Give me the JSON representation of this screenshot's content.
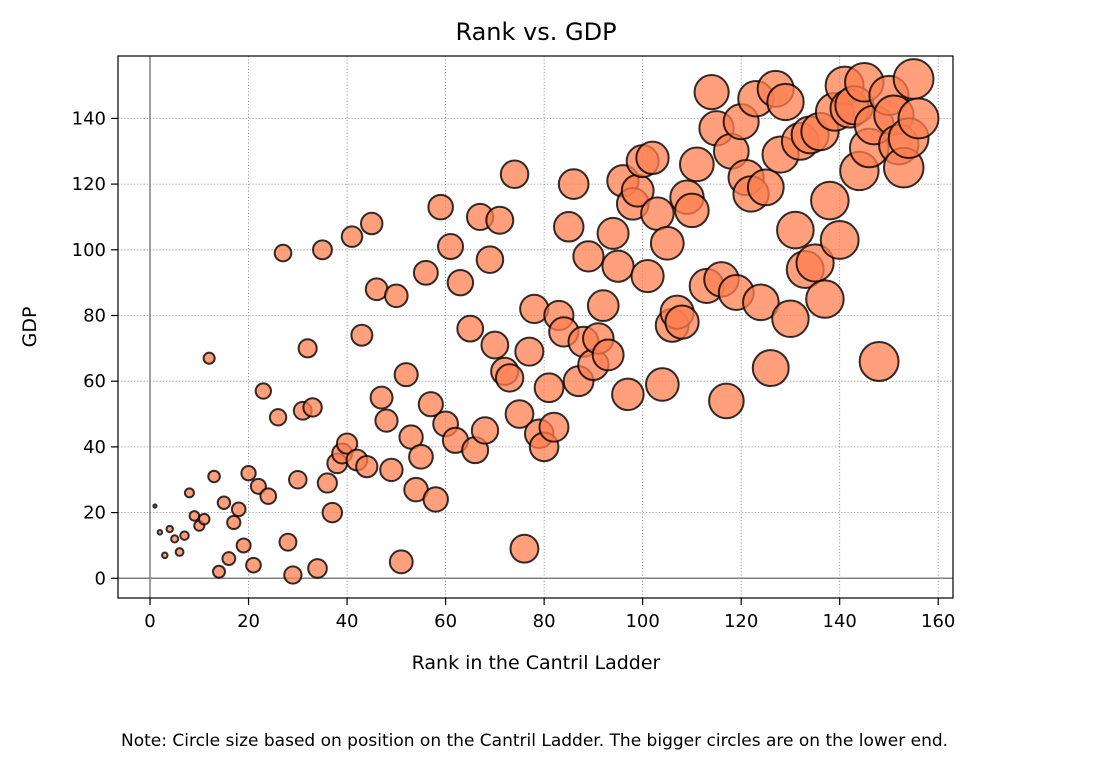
{
  "chart_data": {
    "type": "scatter",
    "title": "Rank vs. GDP",
    "xlabel": "Rank in the Cantril Ladder",
    "ylabel": "GDP",
    "xlim": [
      -6.5,
      163
    ],
    "ylim": [
      -6,
      159
    ],
    "xticks": [
      0,
      20,
      40,
      60,
      80,
      100,
      120,
      140,
      160
    ],
    "yticks": [
      0,
      20,
      40,
      60,
      80,
      100,
      120,
      140
    ],
    "grid": true,
    "marker_color": "#ff7f50",
    "marker_edge_color": "#000000",
    "size_encoding": "marker size proportional to rank",
    "points": [
      [
        1,
        22
      ],
      [
        2,
        14
      ],
      [
        3,
        7
      ],
      [
        4,
        15
      ],
      [
        5,
        12
      ],
      [
        6,
        8
      ],
      [
        7,
        13
      ],
      [
        8,
        26
      ],
      [
        9,
        19
      ],
      [
        10,
        16
      ],
      [
        11,
        18
      ],
      [
        12,
        67
      ],
      [
        13,
        31
      ],
      [
        14,
        2
      ],
      [
        15,
        23
      ],
      [
        16,
        6
      ],
      [
        17,
        17
      ],
      [
        18,
        21
      ],
      [
        19,
        10
      ],
      [
        20,
        32
      ],
      [
        21,
        4
      ],
      [
        22,
        28
      ],
      [
        23,
        57
      ],
      [
        24,
        25
      ],
      [
        26,
        49
      ],
      [
        27,
        99
      ],
      [
        28,
        11
      ],
      [
        29,
        1
      ],
      [
        30,
        30
      ],
      [
        31,
        51
      ],
      [
        32,
        70
      ],
      [
        33,
        52
      ],
      [
        34,
        3
      ],
      [
        35,
        100
      ],
      [
        36,
        29
      ],
      [
        37,
        20
      ],
      [
        38,
        35
      ],
      [
        39,
        38
      ],
      [
        40,
        41
      ],
      [
        41,
        104
      ],
      [
        42,
        36
      ],
      [
        43,
        74
      ],
      [
        44,
        34
      ],
      [
        45,
        108
      ],
      [
        46,
        88
      ],
      [
        47,
        55
      ],
      [
        48,
        48
      ],
      [
        49,
        33
      ],
      [
        50,
        86
      ],
      [
        51,
        5
      ],
      [
        52,
        62
      ],
      [
        53,
        43
      ],
      [
        54,
        27
      ],
      [
        55,
        37
      ],
      [
        56,
        93
      ],
      [
        57,
        53
      ],
      [
        58,
        24
      ],
      [
        59,
        113
      ],
      [
        60,
        47
      ],
      [
        61,
        101
      ],
      [
        62,
        42
      ],
      [
        63,
        90
      ],
      [
        65,
        76
      ],
      [
        66,
        39
      ],
      [
        67,
        110
      ],
      [
        68,
        45
      ],
      [
        69,
        97
      ],
      [
        70,
        71
      ],
      [
        71,
        109
      ],
      [
        72,
        63
      ],
      [
        73,
        61
      ],
      [
        74,
        123
      ],
      [
        75,
        50
      ],
      [
        76,
        9
      ],
      [
        77,
        69
      ],
      [
        78,
        82
      ],
      [
        79,
        44
      ],
      [
        80,
        40
      ],
      [
        81,
        58
      ],
      [
        82,
        46
      ],
      [
        83,
        80
      ],
      [
        84,
        75
      ],
      [
        85,
        107
      ],
      [
        86,
        120
      ],
      [
        87,
        60
      ],
      [
        88,
        72
      ],
      [
        89,
        98
      ],
      [
        90,
        65
      ],
      [
        91,
        73
      ],
      [
        92,
        83
      ],
      [
        93,
        68
      ],
      [
        94,
        105
      ],
      [
        95,
        95
      ],
      [
        96,
        121
      ],
      [
        97,
        56
      ],
      [
        98,
        114
      ],
      [
        99,
        118
      ],
      [
        100,
        127
      ],
      [
        101,
        92
      ],
      [
        102,
        128
      ],
      [
        103,
        111
      ],
      [
        104,
        59
      ],
      [
        105,
        102
      ],
      [
        106,
        77
      ],
      [
        107,
        81
      ],
      [
        108,
        78
      ],
      [
        109,
        116
      ],
      [
        110,
        112
      ],
      [
        111,
        126
      ],
      [
        113,
        89
      ],
      [
        114,
        148
      ],
      [
        115,
        137
      ],
      [
        116,
        91
      ],
      [
        117,
        54
      ],
      [
        118,
        130
      ],
      [
        119,
        87
      ],
      [
        120,
        139
      ],
      [
        121,
        122
      ],
      [
        122,
        117
      ],
      [
        123,
        146
      ],
      [
        124,
        84
      ],
      [
        125,
        119
      ],
      [
        126,
        64
      ],
      [
        127,
        149
      ],
      [
        128,
        129
      ],
      [
        129,
        145
      ],
      [
        130,
        79
      ],
      [
        131,
        106
      ],
      [
        132,
        133
      ],
      [
        133,
        94
      ],
      [
        134,
        135
      ],
      [
        135,
        96
      ],
      [
        136,
        136
      ],
      [
        137,
        85
      ],
      [
        138,
        115
      ],
      [
        139,
        142
      ],
      [
        140,
        103
      ],
      [
        141,
        150
      ],
      [
        142,
        143
      ],
      [
        143,
        144
      ],
      [
        144,
        124
      ],
      [
        145,
        151
      ],
      [
        146,
        131
      ],
      [
        147,
        138
      ],
      [
        148,
        66
      ],
      [
        150,
        147
      ],
      [
        151,
        141
      ],
      [
        152,
        132
      ],
      [
        153,
        125
      ],
      [
        154,
        134
      ],
      [
        155,
        152
      ],
      [
        156,
        140
      ]
    ]
  },
  "note": "Note: Circle size based on position on the Cantril Ladder. The bigger circles are on the lower end."
}
